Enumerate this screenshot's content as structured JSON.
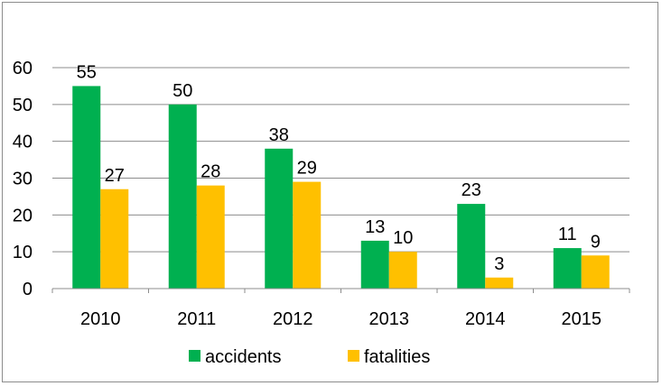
{
  "chart_data": {
    "type": "bar",
    "title": "",
    "xlabel": "",
    "ylabel": "",
    "categories": [
      "2010",
      "2011",
      "2012",
      "2013",
      "2014",
      "2015"
    ],
    "series": [
      {
        "name": "accidents",
        "values": [
          55,
          50,
          38,
          13,
          23,
          11
        ],
        "color": "#00b050"
      },
      {
        "name": "fatalities",
        "values": [
          27,
          28,
          29,
          10,
          3,
          9
        ],
        "color": "#ffc000"
      }
    ],
    "ylim": [
      0,
      60
    ],
    "yticks": [
      0,
      10,
      20,
      30,
      40,
      50,
      60
    ],
    "grid": true,
    "legend": "bottom",
    "data_labels": true
  }
}
